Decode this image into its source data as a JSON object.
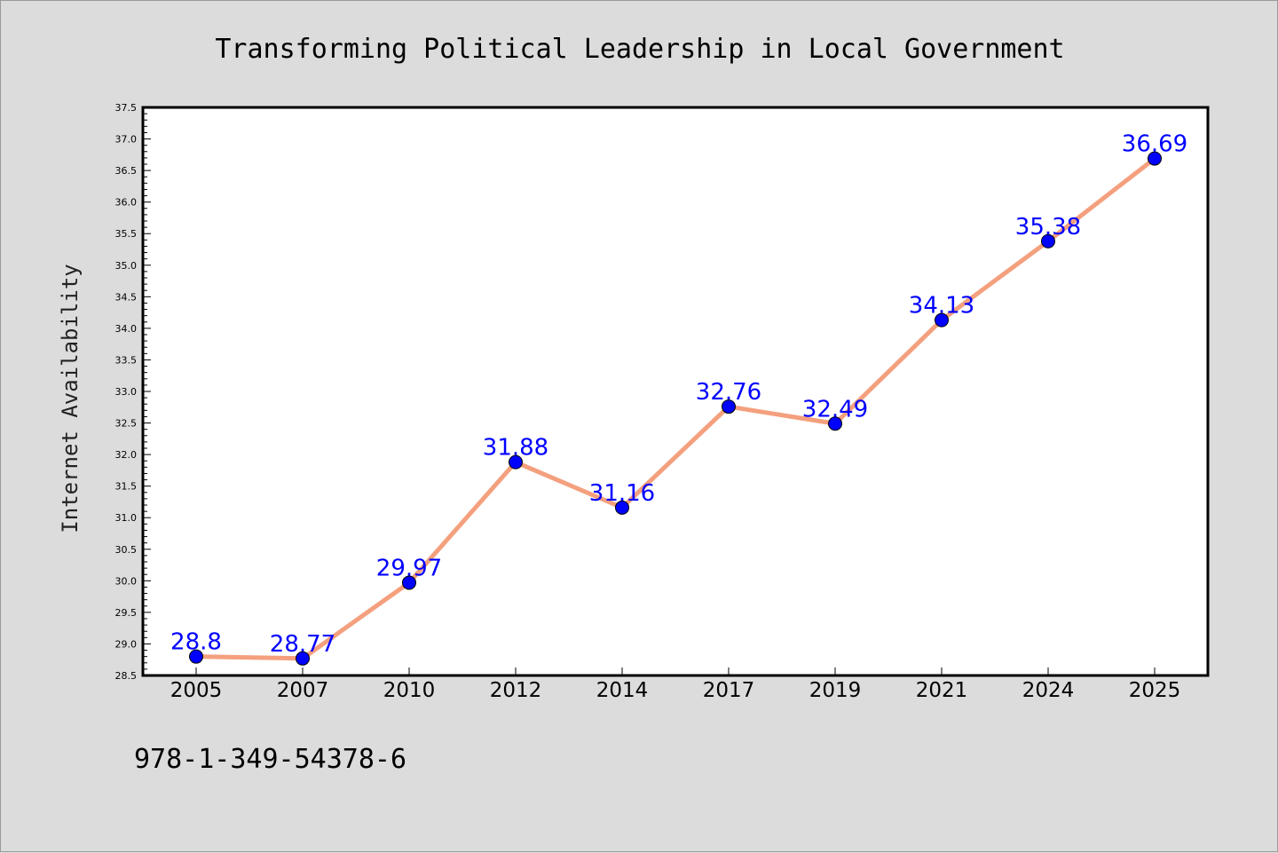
{
  "chart_data": {
    "type": "line",
    "title": "Transforming Political Leadership in Local Government",
    "xlabel": "",
    "ylabel": "Internet Availability",
    "categories": [
      "2005",
      "2007",
      "2010",
      "2012",
      "2014",
      "2017",
      "2019",
      "2021",
      "2024",
      "2025"
    ],
    "series": [
      {
        "values": [
          28.8,
          28.77,
          29.97,
          31.88,
          31.16,
          32.76,
          32.49,
          34.13,
          35.38,
          36.69
        ],
        "data_labels": [
          "28.8",
          "28.77",
          "29.97",
          "31.88",
          "31.16",
          "32.76",
          "32.49",
          "34.13",
          "35.38",
          "36.69"
        ]
      }
    ],
    "ylim": [
      28.5,
      37.5
    ],
    "yticks": [
      "28.5",
      "29.0",
      "29.5",
      "30.0",
      "30.5",
      "31.0",
      "31.5",
      "32.0",
      "32.5",
      "33.0",
      "33.5",
      "34.0",
      "34.5",
      "35.0",
      "35.5",
      "36.0",
      "36.5",
      "37.0",
      "37.5"
    ],
    "grid": false,
    "colors": {
      "line": "#f4a07e",
      "marker": "#0000ff",
      "data_label": "#0000ff",
      "background": "#dcdcdc",
      "plot_background": "#ffffff"
    }
  },
  "footer": {
    "isbn": "978-1-349-54378-6"
  }
}
